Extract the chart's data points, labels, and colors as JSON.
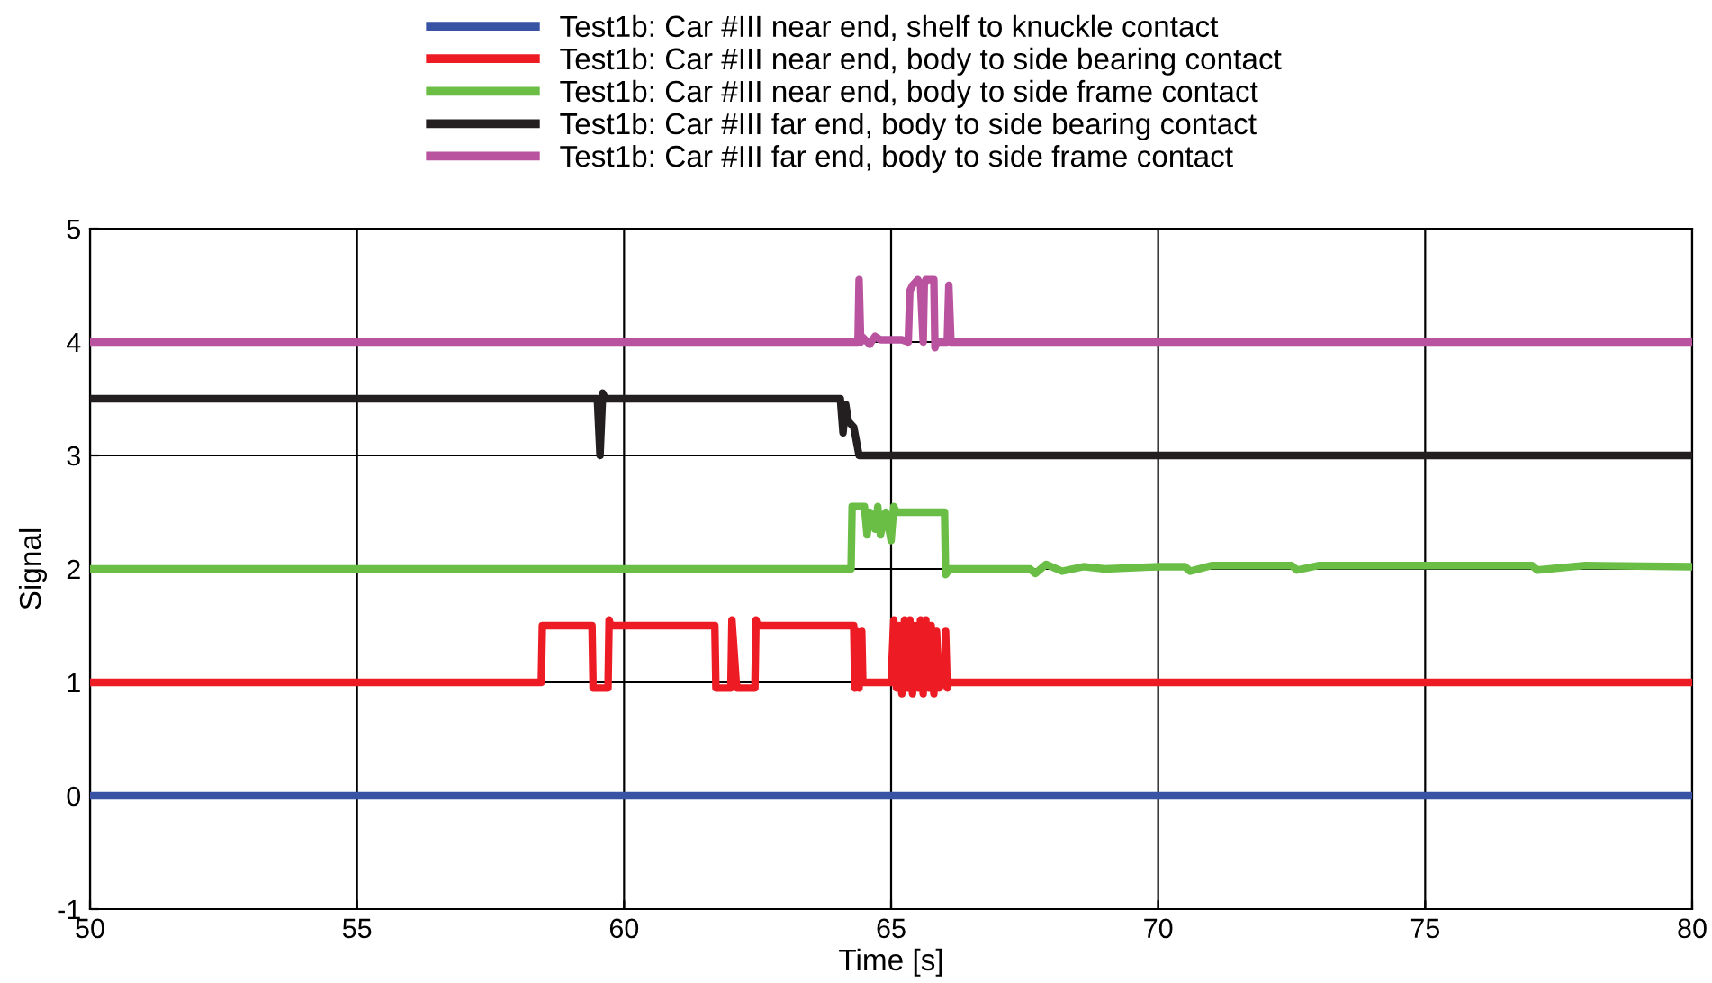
{
  "chart_data": {
    "type": "line",
    "xlabel": "Time [s]",
    "ylabel": "Signal",
    "xlim": [
      50,
      80
    ],
    "ylim": [
      -1,
      5
    ],
    "xticks": [
      50,
      55,
      60,
      65,
      70,
      75,
      80
    ],
    "yticks": [
      -1,
      0,
      1,
      2,
      3,
      4,
      5
    ],
    "grid": true,
    "legend": "top",
    "line_style": "solid",
    "marker": "none",
    "series": [
      {
        "name": "Test1b: Car #III near end, shelf to knuckle contact",
        "color": "#3953a4",
        "x": [
          50,
          80
        ],
        "values": [
          0,
          0
        ]
      },
      {
        "name": "Test1b: Car #III near end, body to side bearing contact",
        "color": "#ed1c24",
        "x": [
          50,
          58.45,
          58.47,
          59.4,
          59.42,
          59.5,
          59.7,
          59.72,
          59.75,
          61.7,
          61.72,
          61.8,
          62.0,
          62.02,
          62.1,
          62.12,
          62.45,
          62.47,
          62.5,
          64.3,
          64.32,
          64.35,
          64.4,
          64.45,
          64.47,
          64.5,
          65.0,
          65.05,
          65.1,
          65.15,
          65.2,
          65.25,
          65.3,
          65.35,
          65.4,
          65.45,
          65.5,
          65.55,
          65.6,
          65.65,
          65.7,
          65.75,
          65.8,
          65.85,
          65.9,
          65.95,
          66.0,
          66.02,
          66.05,
          66.08,
          80
        ],
        "values": [
          1,
          1,
          1.5,
          1.5,
          0.95,
          0.95,
          0.95,
          1.55,
          1.5,
          1.5,
          0.95,
          0.95,
          0.95,
          1.55,
          1.0,
          0.95,
          0.95,
          1.55,
          1.5,
          1.5,
          0.95,
          1.45,
          0.95,
          1.45,
          1.0,
          1.0,
          1.0,
          1.55,
          0.95,
          1.5,
          0.9,
          1.55,
          0.95,
          1.55,
          0.9,
          1.5,
          0.95,
          1.55,
          0.9,
          1.55,
          0.95,
          1.5,
          0.9,
          1.45,
          0.95,
          1.0,
          1.0,
          1.45,
          0.95,
          1.0,
          1
        ]
      },
      {
        "name": "Test1b: Car #III near end, body to side frame contact",
        "color": "#6abd45",
        "x": [
          50,
          64.25,
          64.27,
          64.5,
          64.55,
          64.6,
          64.7,
          64.75,
          64.8,
          64.9,
          65.0,
          65.05,
          65.1,
          65.17,
          66.0,
          66.02,
          66.1,
          67.6,
          67.7,
          67.9,
          68.2,
          68.6,
          69,
          70,
          70.5,
          70.6,
          71,
          72,
          72.5,
          72.6,
          73,
          75,
          76,
          77,
          77.1,
          78,
          80
        ],
        "values": [
          2,
          2,
          2.55,
          2.55,
          2.3,
          2.5,
          2.35,
          2.55,
          2.3,
          2.5,
          2.25,
          2.55,
          2.5,
          2.5,
          2.5,
          1.95,
          2.0,
          2.0,
          1.96,
          2.04,
          1.98,
          2.02,
          2.0,
          2.02,
          2.02,
          1.98,
          2.03,
          2.03,
          2.03,
          1.99,
          2.03,
          2.03,
          2.03,
          2.03,
          1.99,
          2.03,
          2.02
        ]
      },
      {
        "name": "Test1b: Car #III far end, body to side bearing contact",
        "color": "#231f20",
        "x": [
          50,
          59.5,
          59.55,
          59.6,
          59.65,
          59.7,
          64.05,
          64.1,
          64.15,
          64.2,
          64.3,
          64.4,
          64.46,
          80
        ],
        "values": [
          3.5,
          3.5,
          3.0,
          3.55,
          3.5,
          3.5,
          3.5,
          3.2,
          3.45,
          3.3,
          3.25,
          3.0,
          3.0,
          3.0
        ]
      },
      {
        "name": "Test1b: Car #III far end, body to side frame contact",
        "color": "#b9529f",
        "x": [
          50,
          64.38,
          64.4,
          64.43,
          64.45,
          64.6,
          64.7,
          64.8,
          65.0,
          65.2,
          65.32,
          65.35,
          65.4,
          65.5,
          65.55,
          65.6,
          65.62,
          65.65,
          65.8,
          65.82,
          65.85,
          66.05,
          66.08,
          66.12,
          80
        ],
        "values": [
          4,
          4,
          4.55,
          4.0,
          4.05,
          3.98,
          4.05,
          4.02,
          4.02,
          4.02,
          4.0,
          4.45,
          4.5,
          4.55,
          4.5,
          4.0,
          4.5,
          4.55,
          4.55,
          3.95,
          4.0,
          4.0,
          4.5,
          4.0,
          4
        ]
      }
    ]
  }
}
